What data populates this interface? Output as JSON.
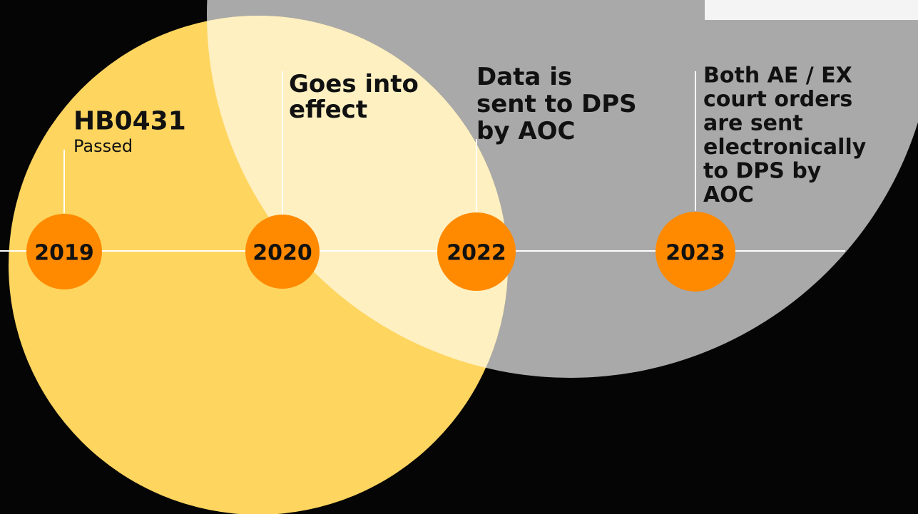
{
  "events": [
    {
      "year": "2019",
      "lines": [
        "HB0431"
      ],
      "subtitle": "Passed"
    },
    {
      "year": "2020",
      "lines": [
        "Goes into",
        "effect"
      ]
    },
    {
      "year": "2022",
      "lines": [
        "Data is",
        "sent to DPS",
        "by AOC"
      ]
    },
    {
      "year": "2023",
      "lines": [
        "Both AE / EX",
        "court orders",
        "are sent",
        "electronically",
        "to DPS by",
        "AOC"
      ]
    }
  ]
}
